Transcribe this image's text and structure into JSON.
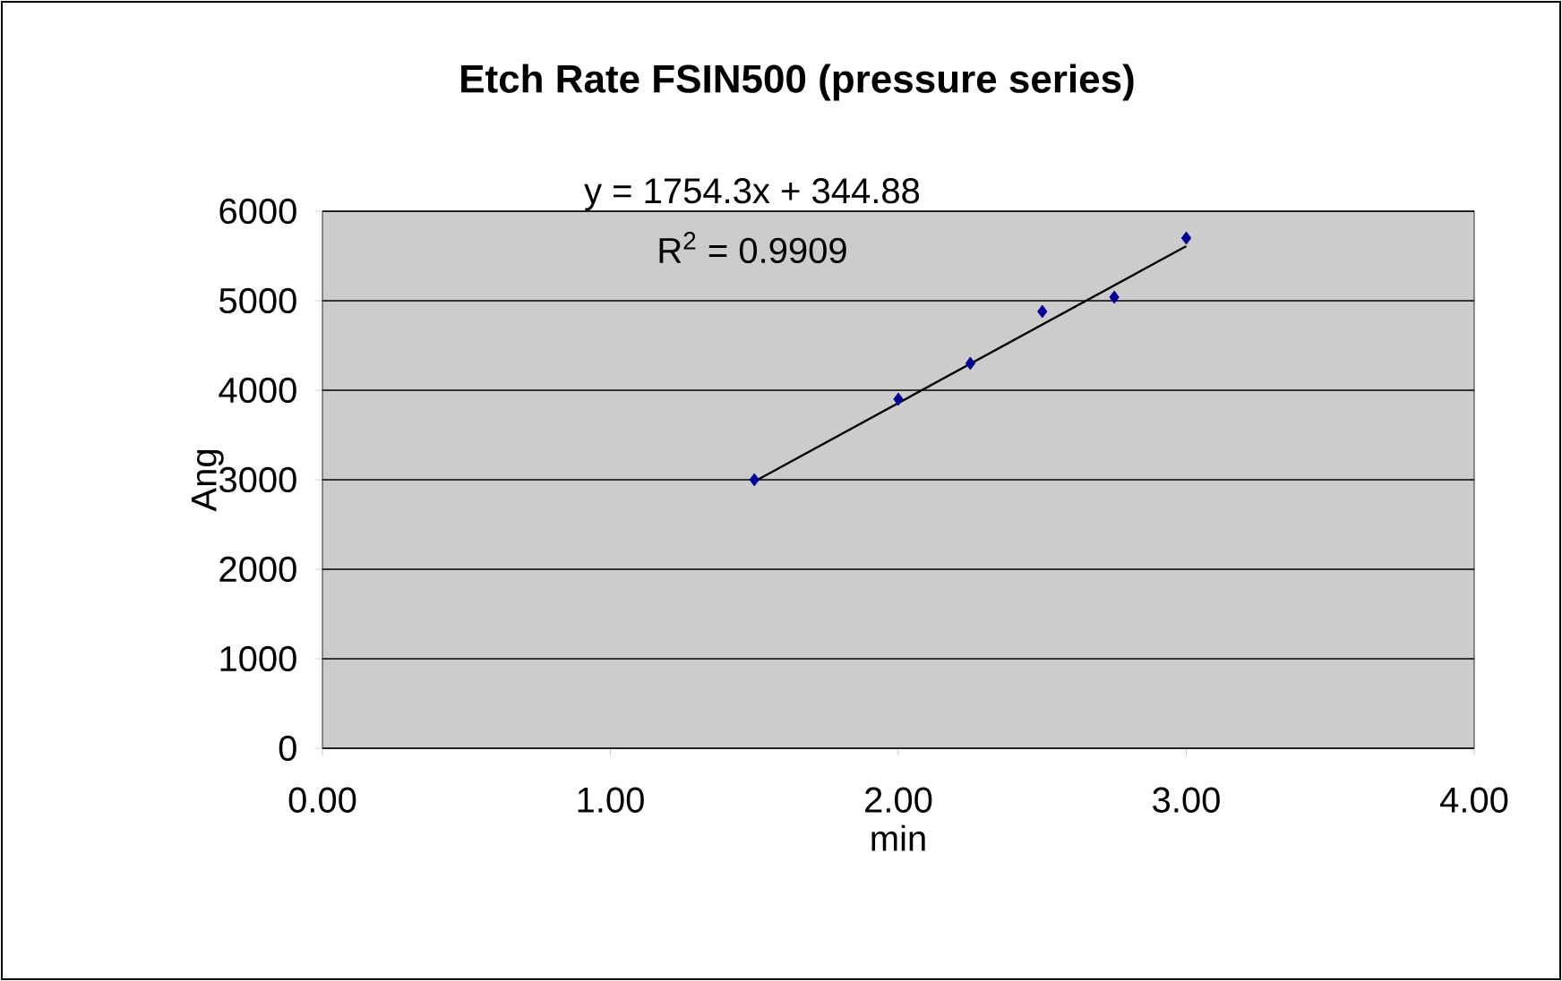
{
  "chart_data": {
    "type": "scatter",
    "title": "Etch Rate FSIN500 (pressure series)",
    "xlabel": "min",
    "ylabel": "Ang",
    "annotations": [
      "y = 1754.3x + 344.88",
      "R$^{2}$ = 0.9909"
    ],
    "xlim": [
      0,
      4
    ],
    "ylim": [
      0,
      6000
    ],
    "xticks": [
      {
        "value": 0,
        "label": "0.00"
      },
      {
        "value": 1,
        "label": "1.00"
      },
      {
        "value": 2,
        "label": "2.00"
      },
      {
        "value": 3,
        "label": "3.00"
      },
      {
        "value": 4,
        "label": "4.00"
      }
    ],
    "yticks": [
      0,
      1000,
      2000,
      3000,
      4000,
      5000,
      6000
    ],
    "grid": "y",
    "series": [
      {
        "color": "#000099",
        "marker": "diamond",
        "x": [
          1.5,
          2.0,
          2.25,
          2.5,
          2.75,
          3.0
        ],
        "values": [
          3000,
          3900,
          4300,
          4880,
          5040,
          5700
        ]
      },
      {
        "type": "line",
        "color": "#000000",
        "marker": "none",
        "line_style": "solid",
        "x": [
          1.5,
          3.0
        ],
        "values": [
          2980,
          5610
        ]
      }
    ]
  }
}
